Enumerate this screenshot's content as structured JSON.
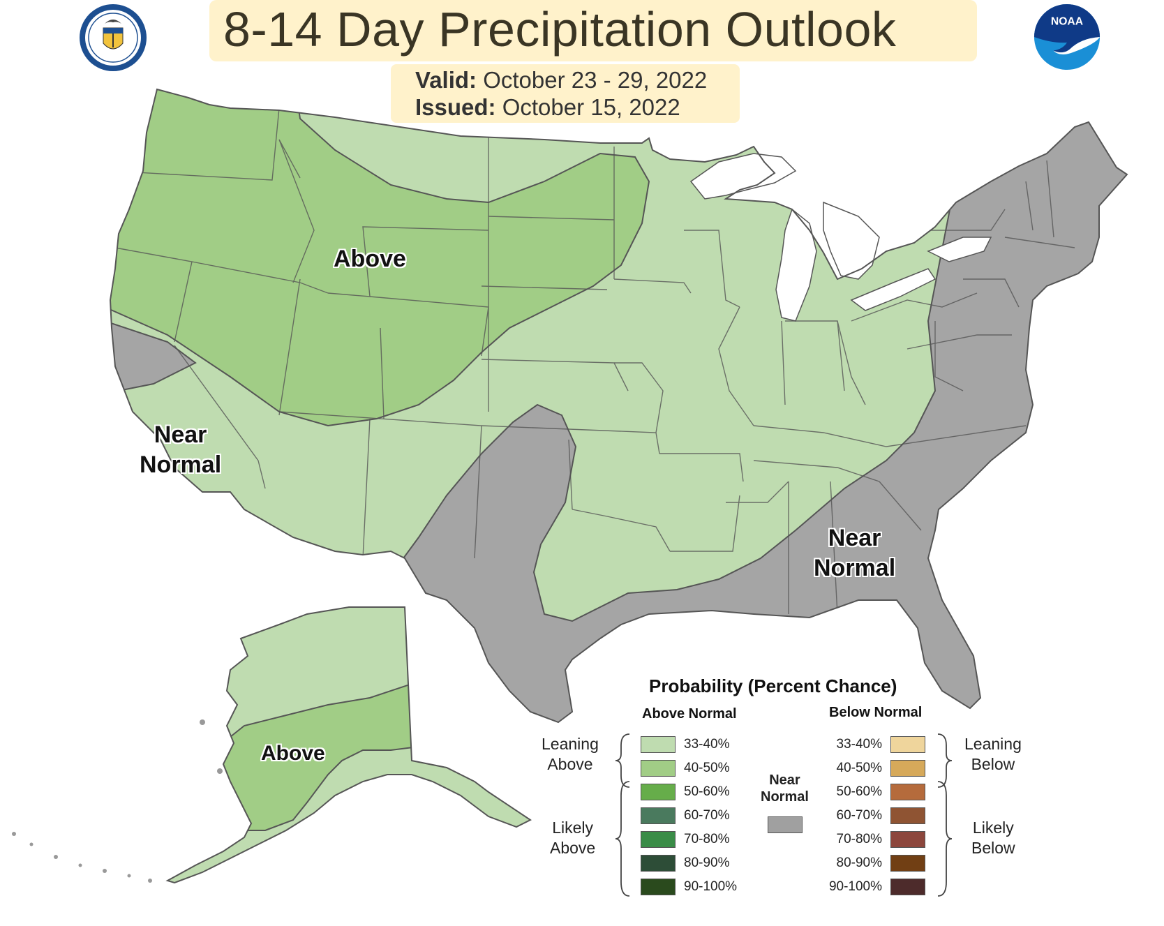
{
  "header": {
    "title": "8-14 Day Precipitation Outlook",
    "valid_label": "Valid:",
    "valid_value": "October 23 - 29, 2022",
    "issued_label": "Issued:",
    "issued_value": "October 15, 2022"
  },
  "logos": {
    "doc_seal_icon": "department-of-commerce-seal",
    "noaa_logo_icon": "noaa-logo",
    "noaa_text": "NOAA"
  },
  "map": {
    "labels": {
      "above_conus": "Above",
      "near_normal_west_line1": "Near",
      "near_normal_west_line2": "Normal",
      "near_normal_east_line1": "Near",
      "near_normal_east_line2": "Normal",
      "above_alaska": "Above"
    },
    "colors": {
      "background": "#ffffff",
      "lean_above": "#bfdcb0",
      "above_40_50": "#a1cd86",
      "near_normal": "#a5a5a5",
      "border": "#666666"
    }
  },
  "legend": {
    "title": "Probability (Percent Chance)",
    "above_header": "Above Normal",
    "below_header": "Below Normal",
    "near_label_line1": "Near",
    "near_label_line2": "Normal",
    "near_color": "#a0a0a0",
    "leaning_above_line1": "Leaning",
    "leaning_above_line2": "Above",
    "likely_above_line1": "Likely",
    "likely_above_line2": "Above",
    "leaning_below_line1": "Leaning",
    "leaning_below_line2": "Below",
    "likely_below_line1": "Likely",
    "likely_below_line2": "Below",
    "above": [
      {
        "label": "33-40%",
        "color": "#bfdcb0"
      },
      {
        "label": "40-50%",
        "color": "#a1cd86"
      },
      {
        "label": "50-60%",
        "color": "#66ad4a"
      },
      {
        "label": "60-70%",
        "color": "#4a7a5e"
      },
      {
        "label": "70-80%",
        "color": "#3a8c47"
      },
      {
        "label": "80-90%",
        "color": "#2d4d37"
      },
      {
        "label": "90-100%",
        "color": "#2a4a1d"
      }
    ],
    "below": [
      {
        "label": "33-40%",
        "color": "#efd59c"
      },
      {
        "label": "40-50%",
        "color": "#d6a95a"
      },
      {
        "label": "50-60%",
        "color": "#b56b3c"
      },
      {
        "label": "60-70%",
        "color": "#8f5433"
      },
      {
        "label": "70-80%",
        "color": "#8c463c"
      },
      {
        "label": "80-90%",
        "color": "#713f14"
      },
      {
        "label": "90-100%",
        "color": "#4d2b2b"
      }
    ]
  }
}
